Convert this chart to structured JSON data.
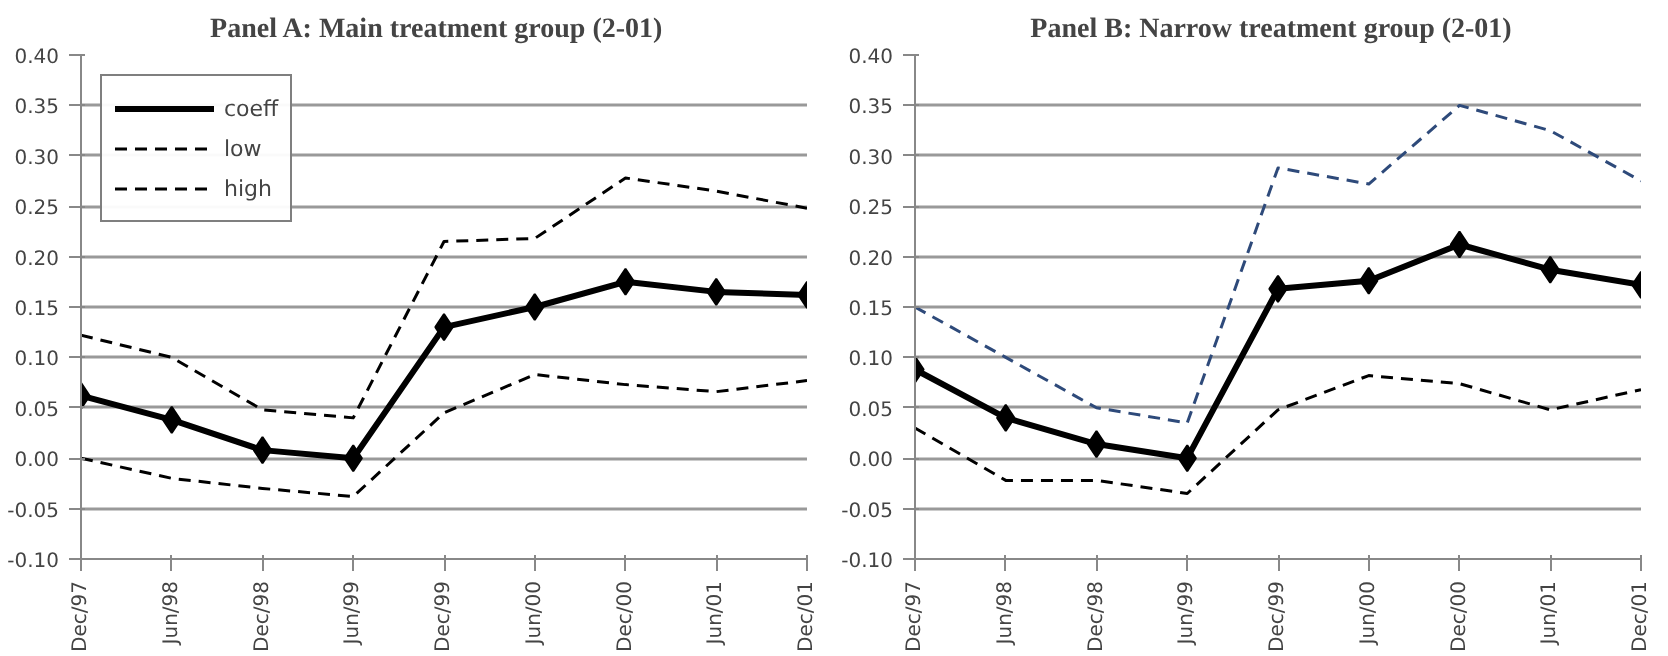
{
  "chart_data": [
    {
      "type": "line",
      "title": "Panel A:   Main treatment group (2-01)",
      "categories": [
        "Dec/97",
        "Jun/98",
        "Dec/98",
        "Jun/99",
        "Dec/99",
        "Jun/00",
        "Dec/00",
        "Jun/01",
        "Dec/01"
      ],
      "ylim": [
        -0.1,
        0.4
      ],
      "yticks": [
        {
          "value": -0.1,
          "label": "-0.10"
        },
        {
          "value": -0.05,
          "label": "-0.05"
        },
        {
          "value": 0,
          "label": "0.00"
        },
        {
          "value": 0.05,
          "label": "0.05"
        },
        {
          "value": 0.1,
          "label": "0.10"
        },
        {
          "value": 0.15,
          "label": "0.15"
        },
        {
          "value": 0.2,
          "label": "0.20"
        },
        {
          "value": 0.25,
          "label": "0.25"
        },
        {
          "value": 0.3,
          "label": "0.30"
        },
        {
          "value": 0.35,
          "label": "0.35"
        },
        {
          "value": 0.4,
          "label": "0.40"
        }
      ],
      "grid": "y",
      "legend": "top left",
      "series": [
        {
          "name": "coeff",
          "color": "#000000",
          "marker": "diamond",
          "line_style": "solid",
          "values": [
            0.062,
            0.038,
            0.008,
            0.0,
            0.13,
            0.15,
            0.175,
            0.165,
            0.162
          ]
        },
        {
          "name": "low",
          "color": "#000000",
          "marker": "none",
          "line_style": "dashed",
          "values": [
            0.0,
            -0.02,
            -0.03,
            -0.038,
            0.045,
            0.083,
            0.073,
            0.066,
            0.077
          ]
        },
        {
          "name": "high",
          "color": "#000000",
          "marker": "none",
          "line_style": "dashed",
          "values": [
            0.122,
            0.1,
            0.048,
            0.04,
            0.215,
            0.218,
            0.278,
            0.265,
            0.248
          ]
        }
      ]
    },
    {
      "type": "line",
      "title": "Panel B:   Narrow treatment group (2-01)",
      "categories": [
        "Dec/97",
        "Jun/98",
        "Dec/98",
        "Jun/99",
        "Dec/99",
        "Jun/00",
        "Dec/00",
        "Jun/01",
        "Dec/01"
      ],
      "ylim": [
        -0.1,
        0.4
      ],
      "yticks": [
        {
          "value": -0.1,
          "label": "-0.10"
        },
        {
          "value": -0.05,
          "label": "-0.05"
        },
        {
          "value": 0,
          "label": "0.00"
        },
        {
          "value": 0.05,
          "label": "0.05"
        },
        {
          "value": 0.1,
          "label": "0.10"
        },
        {
          "value": 0.15,
          "label": "0.15"
        },
        {
          "value": 0.2,
          "label": "0.20"
        },
        {
          "value": 0.25,
          "label": "0.25"
        },
        {
          "value": 0.3,
          "label": "0.30"
        },
        {
          "value": 0.35,
          "label": "0.35"
        },
        {
          "value": 0.4,
          "label": "0.40"
        }
      ],
      "grid": "y",
      "series": [
        {
          "color": "#000000",
          "marker": "diamond",
          "line_style": "solid",
          "values": [
            0.088,
            0.04,
            0.014,
            0.0,
            0.168,
            0.176,
            0.212,
            0.187,
            0.172
          ]
        },
        {
          "color": "#000000",
          "marker": "none",
          "line_style": "dashed",
          "values": [
            0.03,
            -0.022,
            -0.022,
            -0.035,
            0.048,
            0.082,
            0.074,
            0.048,
            0.068
          ]
        },
        {
          "color": "#2e4a7a",
          "marker": "none",
          "line_style": "dashed",
          "values": [
            0.15,
            0.1,
            0.05,
            0.035,
            0.288,
            0.272,
            0.35,
            0.325,
            0.275
          ]
        }
      ]
    }
  ]
}
